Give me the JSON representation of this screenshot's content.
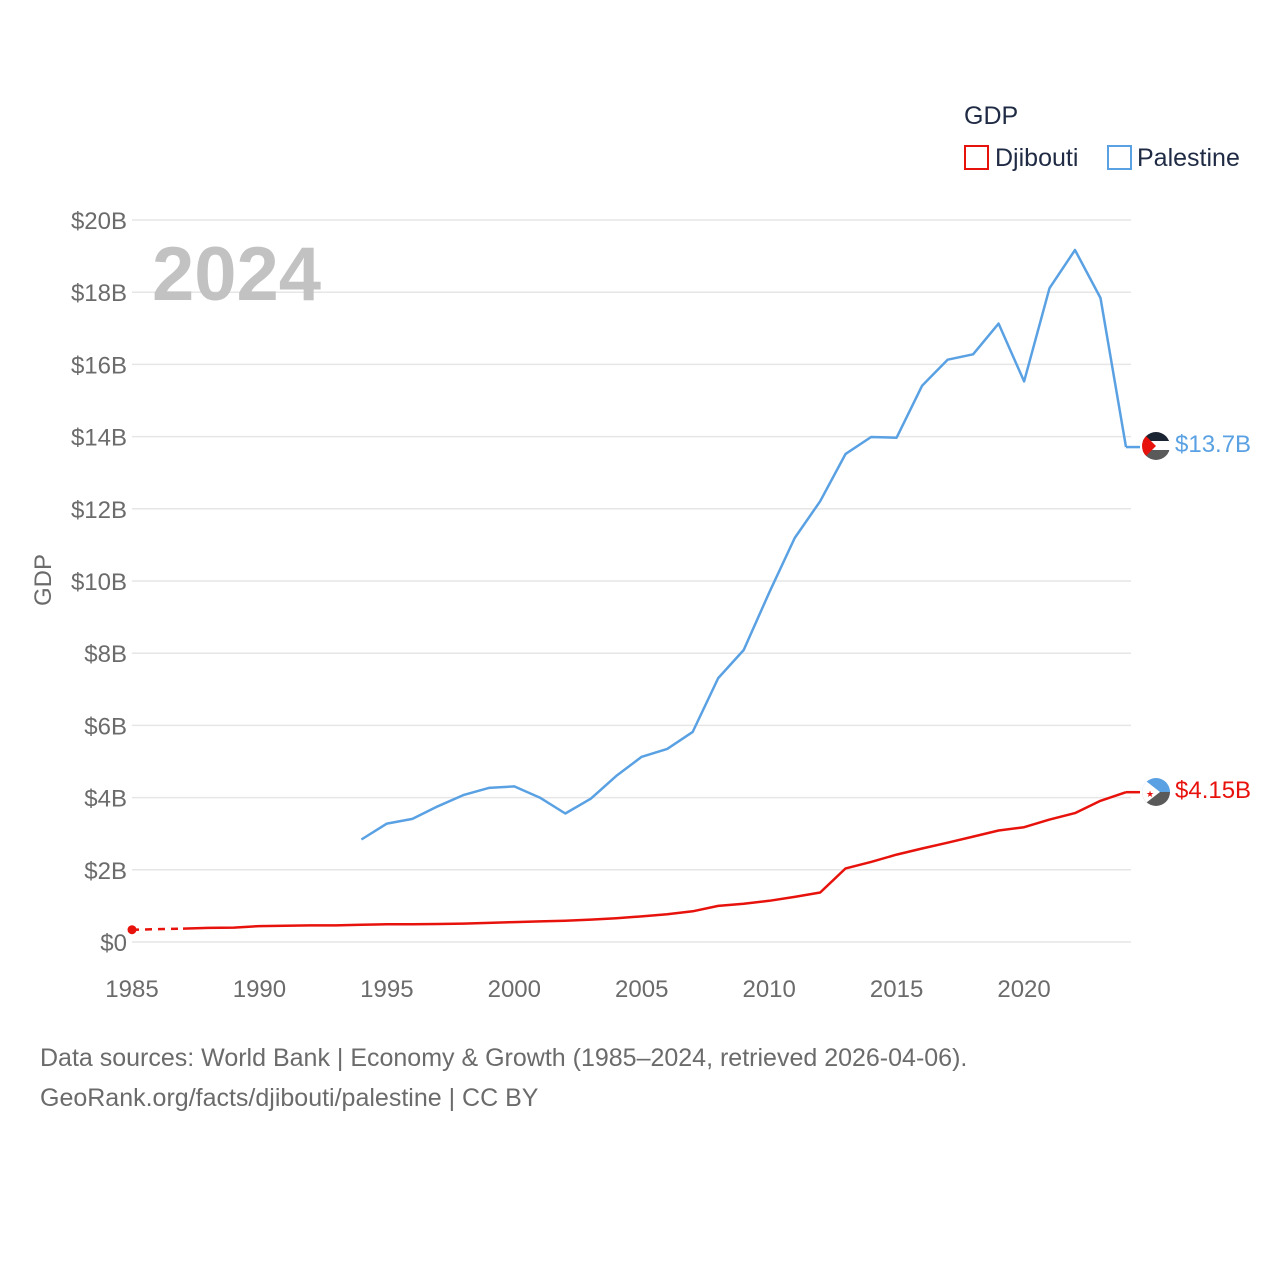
{
  "chart_data": {
    "type": "line",
    "year_watermark": "2024",
    "ylabel": "GDP",
    "xlabel": "",
    "ylim": [
      0,
      20
    ],
    "xlim": [
      1985,
      2024
    ],
    "y_ticks": [
      0,
      2,
      4,
      6,
      8,
      10,
      12,
      14,
      16,
      18,
      20
    ],
    "y_tick_labels": [
      "$0",
      "$2B",
      "$4B",
      "$6B",
      "$8B",
      "$10B",
      "$12B",
      "$14B",
      "$16B",
      "$18B",
      "$20B"
    ],
    "x_ticks": [
      1985,
      1990,
      1995,
      2000,
      2005,
      2010,
      2015,
      2020
    ],
    "x_tick_labels": [
      "1985",
      "1990",
      "1995",
      "2000",
      "2005",
      "2010",
      "2015",
      "2020"
    ],
    "grid": true,
    "legend": {
      "title": "GDP",
      "position": "top-right",
      "entries": [
        "Djibouti",
        "Palestine"
      ]
    },
    "series": [
      {
        "name": "Djibouti",
        "color": "#e8120c",
        "unit": "billion USD",
        "x": [
          1985,
          1987,
          1988,
          1989,
          1990,
          1991,
          1992,
          1993,
          1994,
          1995,
          1996,
          1997,
          1998,
          1999,
          2000,
          2001,
          2002,
          2003,
          2004,
          2005,
          2006,
          2007,
          2008,
          2009,
          2010,
          2011,
          2012,
          2013,
          2014,
          2015,
          2016,
          2017,
          2018,
          2019,
          2020,
          2021,
          2022,
          2023,
          2024
        ],
        "values": [
          0.34,
          0.37,
          0.39,
          0.4,
          0.44,
          0.45,
          0.46,
          0.46,
          0.48,
          0.49,
          0.49,
          0.5,
          0.51,
          0.53,
          0.55,
          0.57,
          0.59,
          0.62,
          0.66,
          0.71,
          0.77,
          0.85,
          1.0,
          1.06,
          1.14,
          1.25,
          1.37,
          2.04,
          2.22,
          2.42,
          2.59,
          2.75,
          2.92,
          3.09,
          3.18,
          3.39,
          3.57,
          3.91,
          4.15
        ],
        "gap_before": 1987,
        "end_label": "$4.15B"
      },
      {
        "name": "Palestine",
        "color": "#5aa1e3",
        "unit": "billion USD",
        "x": [
          1994,
          1995,
          1996,
          1997,
          1998,
          1999,
          2000,
          2001,
          2002,
          2003,
          2004,
          2005,
          2006,
          2007,
          2008,
          2009,
          2010,
          2011,
          2012,
          2013,
          2014,
          2015,
          2016,
          2017,
          2018,
          2019,
          2020,
          2021,
          2022,
          2023,
          2024
        ],
        "values": [
          2.84,
          3.28,
          3.41,
          3.76,
          4.07,
          4.27,
          4.31,
          4.0,
          3.56,
          3.97,
          4.6,
          5.13,
          5.35,
          5.82,
          7.31,
          8.09,
          9.68,
          11.19,
          12.21,
          13.52,
          13.99,
          13.97,
          15.41,
          16.13,
          16.28,
          17.13,
          15.53,
          18.11,
          19.17,
          17.84,
          13.71
        ],
        "end_label": "$13.7B"
      }
    ]
  },
  "footer": {
    "sources": "Data sources: World Bank | Economy & Growth (1985–2024, retrieved 2026-04-06).",
    "credit": "GeoRank.org/facts/djibouti/palestine | CC BY"
  }
}
